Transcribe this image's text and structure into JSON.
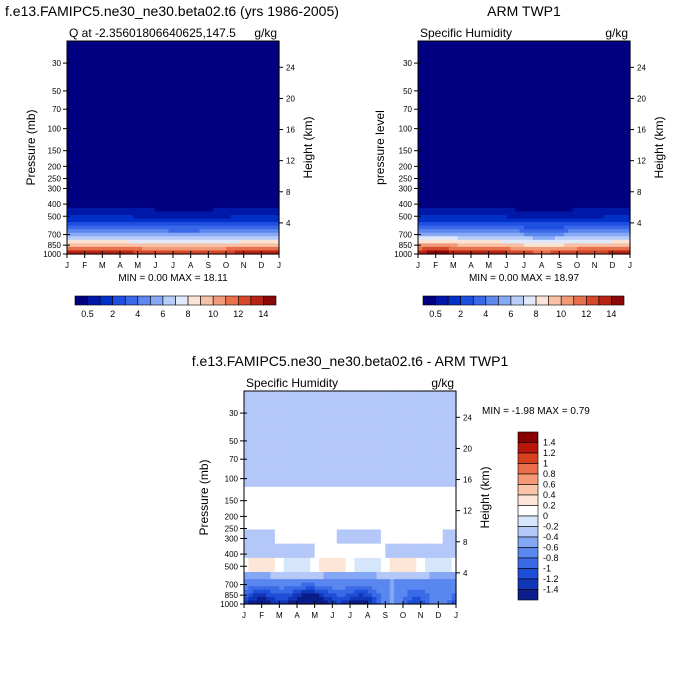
{
  "chart_data": [
    {
      "type": "heatmap",
      "title": "f.e13.FAMIPC5.ne30_ne30.beta02.t6 (yrs 1986-2005)",
      "subtitle_left": "Q at -2.35601806640625,147.5",
      "subtitle_right": "g/kg",
      "ylabel": "Pressure (mb)",
      "ylabel_right": "Height (km)",
      "stats": "MIN =   0.00 MAX =  18.11",
      "x_ticks": [
        "J",
        "F",
        "M",
        "A",
        "M",
        "J",
        "J",
        "A",
        "S",
        "O",
        "N",
        "D",
        "J"
      ],
      "y_ticks": [
        30,
        50,
        70,
        100,
        150,
        200,
        250,
        300,
        400,
        500,
        700,
        850,
        1000
      ],
      "height_ticks": [
        4,
        8,
        12,
        16,
        20,
        24
      ],
      "ylim": [
        1000,
        20
      ],
      "palette": "positive",
      "colorbar": {
        "orientation": "horizontal",
        "labels": [
          "0.5",
          "2",
          "4",
          "6",
          "8",
          "10",
          "12",
          "14"
        ]
      }
    },
    {
      "type": "heatmap",
      "title": "ARM TWP1",
      "subtitle_left": "Specific Humidity",
      "subtitle_right": "g/kg",
      "ylabel": "pressure level",
      "ylabel_right": "Height (km)",
      "stats": "MIN =   0.00 MAX =  18.97",
      "x_ticks": [
        "J",
        "F",
        "M",
        "A",
        "M",
        "J",
        "J",
        "A",
        "S",
        "O",
        "N",
        "D",
        "J"
      ],
      "y_ticks": [
        30,
        50,
        70,
        100,
        150,
        200,
        250,
        300,
        400,
        500,
        700,
        850,
        1000
      ],
      "height_ticks": [
        4,
        8,
        12,
        16,
        20,
        24
      ],
      "ylim": [
        1000,
        20
      ],
      "palette": "positive",
      "colorbar": {
        "orientation": "horizontal",
        "labels": [
          "0.5",
          "2",
          "4",
          "6",
          "8",
          "10",
          "12",
          "14"
        ]
      }
    },
    {
      "type": "heatmap",
      "title": "f.e13.FAMIPC5.ne30_ne30.beta02.t6 - ARM TWP1",
      "subtitle_left": "Specific Humidity",
      "subtitle_right": "g/kg",
      "ylabel": "Pressure (mb)",
      "ylabel_right": "Height (km)",
      "stats": "MIN =  -1.98 MAX =   0.79",
      "x_ticks": [
        "J",
        "F",
        "M",
        "A",
        "M",
        "J",
        "J",
        "A",
        "S",
        "O",
        "N",
        "D",
        "J"
      ],
      "y_ticks": [
        30,
        50,
        70,
        100,
        150,
        200,
        250,
        300,
        400,
        500,
        700,
        850,
        1000
      ],
      "height_ticks": [
        4,
        8,
        12,
        16,
        20,
        24
      ],
      "ylim": [
        1000,
        20
      ],
      "palette": "difference",
      "colorbar": {
        "orientation": "vertical",
        "labels": [
          "1.4",
          "1.2",
          "1",
          "0.8",
          "0.6",
          "0.4",
          "0.2",
          "0",
          "-0.2",
          "-0.4",
          "-0.6",
          "-0.8",
          "-1",
          "-1.2",
          "-1.4"
        ]
      }
    }
  ],
  "palettes": {
    "positive": [
      "#000080",
      "#0018a8",
      "#0030c8",
      "#1f4fe0",
      "#3a68e8",
      "#5c88f0",
      "#86a8f5",
      "#b8ccf8",
      "#dfe9fa",
      "#fbe3d6",
      "#f8c1a6",
      "#f29977",
      "#e8704c",
      "#d6482c",
      "#b72414",
      "#8c0808"
    ],
    "difference": [
      "#0b1d8a",
      "#1136b8",
      "#1e4ed8",
      "#3a6ae6",
      "#5a86ef",
      "#83a6f5",
      "#b3c8f8",
      "#d6e6fa",
      "#ffffff",
      "#fde6d8",
      "#fac4a8",
      "#f59a77",
      "#ea6e4a",
      "#d8401e",
      "#b8160a",
      "#880000"
    ]
  }
}
